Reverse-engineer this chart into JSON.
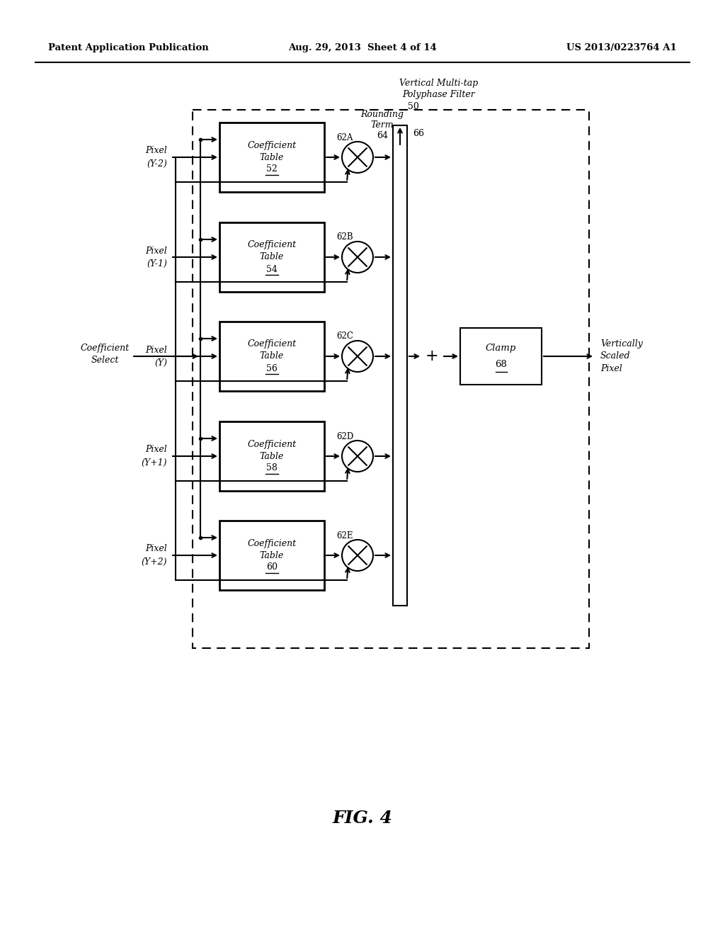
{
  "bg_color": "#ffffff",
  "header_left": "Patent Application Publication",
  "header_mid": "Aug. 29, 2013  Sheet 4 of 14",
  "header_right": "US 2013/0223764 A1",
  "fig_label": "FIG. 4",
  "filter_title_1": "Vertical Multi-tap",
  "filter_title_2": "Polyphase Filter",
  "filter_num": "50",
  "rounding_1": "Rounding",
  "rounding_2": "Term",
  "rounding_num": "64",
  "summation_label": "66",
  "coeff_tables": [
    {
      "line1": "Coefficient",
      "line2": "Table",
      "num": "52",
      "mult": "62A"
    },
    {
      "line1": "Coefficient",
      "line2": "Table",
      "num": "54",
      "mult": "62B"
    },
    {
      "line1": "Coefficient",
      "line2": "Table",
      "num": "56",
      "mult": "62C"
    },
    {
      "line1": "Coefficient",
      "line2": "Table",
      "num": "58",
      "mult": "62D"
    },
    {
      "line1": "Coefficient",
      "line2": "Table",
      "num": "60",
      "mult": "62E"
    }
  ],
  "pixel_labels": [
    [
      "Pixel",
      "(Y-2)"
    ],
    [
      "Pixel",
      "(Y-1)"
    ],
    [
      "Pixel",
      "(Y)"
    ],
    [
      "Pixel",
      "(Y+1)"
    ],
    [
      "Pixel",
      "(Y+2)"
    ]
  ],
  "coeff_select_1": "Coefficient",
  "coeff_select_2": "Select",
  "clamp_line1": "Clamp",
  "clamp_num": "68",
  "output_1": "Vertically",
  "output_2": "Scaled",
  "output_3": "Pixel",
  "plus_sign": "+"
}
